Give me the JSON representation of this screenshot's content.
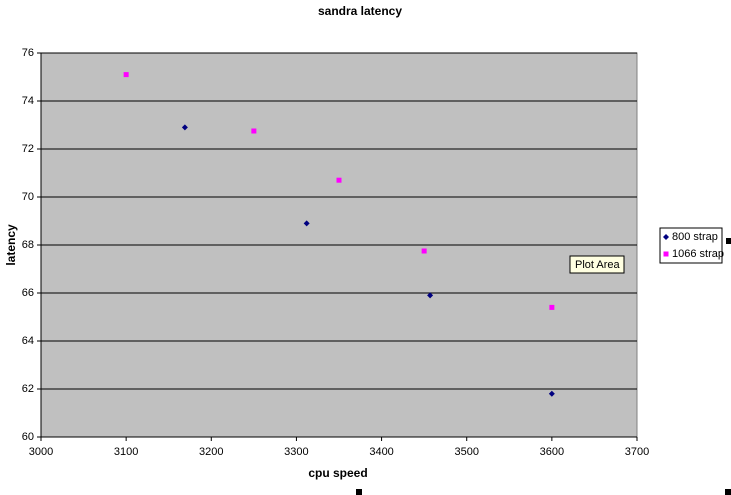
{
  "chart_data": {
    "type": "scatter",
    "title": "sandra latency",
    "x_label": "cpu speed",
    "y_label": "latency",
    "series": [
      {
        "name": "800 strap",
        "color": "#000080",
        "marker": "diamond",
        "x": [
          3169,
          3312,
          3457,
          3600
        ],
        "values": [
          72.9,
          68.9,
          65.9,
          61.8
        ]
      },
      {
        "name": "1066 strap",
        "color": "#ff00ff",
        "marker": "square",
        "x": [
          3100,
          3250,
          3350,
          3450,
          3600
        ],
        "values": [
          75.1,
          72.75,
          70.7,
          67.75,
          65.4
        ]
      }
    ],
    "xlim": [
      3000,
      3700
    ],
    "xticks": [
      3000,
      3100,
      3200,
      3300,
      3400,
      3500,
      3600,
      3700
    ],
    "ylim": [
      60,
      76
    ],
    "yticks": [
      60,
      62,
      64,
      66,
      68,
      70,
      72,
      74,
      76
    ],
    "grid": true,
    "legend": "right",
    "tooltip": "Plot Area"
  }
}
